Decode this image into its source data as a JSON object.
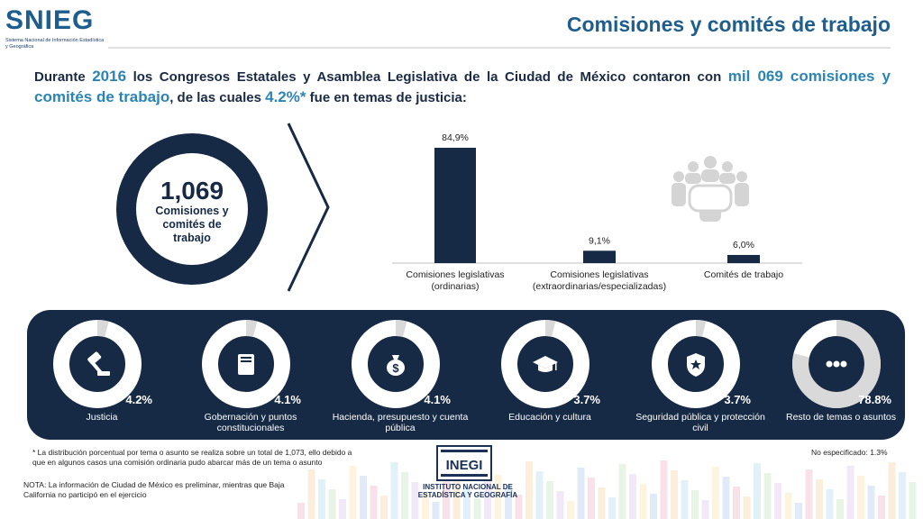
{
  "header": {
    "logo_word": "SNIEG",
    "logo_subtitle": "Sistema Nacional de Información Estadística y Geográfica",
    "title": "Comisiones y comités de trabajo"
  },
  "intro": {
    "p1": "Durante ",
    "year": "2016",
    "p2": " los Congresos Estatales y Asamblea Legislativa de la Ciudad de México contaron con ",
    "total": "mil 069 comisiones y comités de trabajo",
    "p3": ", de las cuales ",
    "share": "4.2%*",
    "p4": " fue en temas de justicia:"
  },
  "summary": {
    "value": "1,069",
    "label": "Comisiones y comités de trabajo"
  },
  "chart_data": {
    "type": "bar",
    "categories": [
      [
        "Comisiones legislativas",
        "(ordinarias)"
      ],
      [
        "Comisiones legislativas",
        "(extraordinarias/especializadas)"
      ],
      [
        "Comités de trabajo"
      ]
    ],
    "values": [
      84.9,
      9.1,
      6.0
    ],
    "value_labels": [
      "84,9%",
      "9,1%",
      "6,0%"
    ],
    "color": "#162a45",
    "ylim": [
      0,
      100
    ]
  },
  "topics": [
    {
      "label": "Justicia",
      "pct": "4.2%",
      "value": 4.2,
      "icon": "gavel-icon"
    },
    {
      "label": "Gobernación y puntos constitucionales",
      "pct": "4.1%",
      "value": 4.1,
      "icon": "book-icon"
    },
    {
      "label": "Hacienda, presupuesto y cuenta pública",
      "pct": "4.1%",
      "value": 4.1,
      "icon": "money-bag-icon"
    },
    {
      "label": "Educación y cultura",
      "pct": "3.7%",
      "value": 3.7,
      "icon": "graduation-cap-icon"
    },
    {
      "label": "Seguridad pública y protección civil",
      "pct": "3.7%",
      "value": 3.7,
      "icon": "police-badge-icon"
    },
    {
      "label": "Resto de temas o asuntos",
      "pct": "78.8%",
      "value": 78.8,
      "icon": "ellipsis-icon"
    }
  ],
  "footnotes": {
    "asterisk": "* La distribución porcentual por tema o asunto se realiza sobre un total de 1,073, ello debido a que en algunos casos una comisión ordinaria pudo abarcar más de un tema o asunto",
    "no_specified": "No especificado: 1.3%",
    "nota": "NOTA: La información de Ciudad de México es preliminar, mientras que Baja California no participó en el ejercicio"
  },
  "inegi": {
    "mark": "INEGI",
    "name": "INSTITUTO NACIONAL DE ESTADÍSTICA Y GEOGRAFÍA"
  },
  "colors": {
    "navy": "#162a45",
    "accent_blue": "#2c84b5",
    "title_blue": "#1d5e8f",
    "ring_grey": "#d9d9d9"
  }
}
